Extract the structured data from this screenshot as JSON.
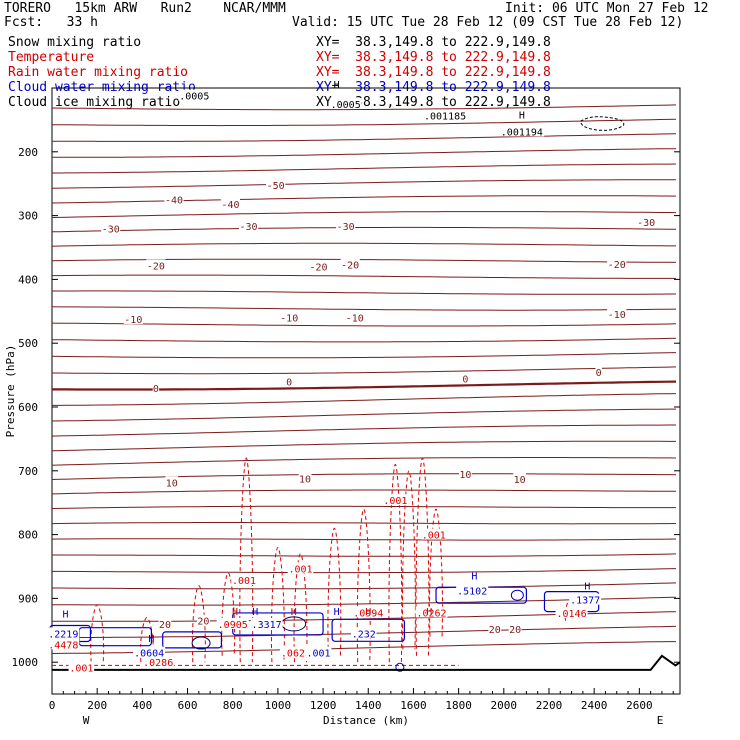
{
  "header": {
    "model": "TORERO",
    "resolution": "15km ARW",
    "run": "Run2",
    "org": "NCAR/MMM",
    "init": "Init: 06 UTC Mon 27 Feb 12",
    "fcst_label": "Fcst:",
    "fcst_value": "33 h",
    "valid": "Valid: 15 UTC Tue 28 Feb 12 (09 CST Tue 28 Feb 12)"
  },
  "fields": [
    {
      "name": "Snow mixing ratio",
      "xy": "XY=  38.3,149.8 to 222.9,149.8",
      "color": "#000000"
    },
    {
      "name": "Temperature",
      "xy": "XY=  38.3,149.8 to 222.9,149.8",
      "color": "#cc0000"
    },
    {
      "name": "Rain water mixing ratio",
      "xy": "XY=  38.3,149.8 to 222.9,149.8",
      "color": "#cc0000"
    },
    {
      "name": "Cloud water mixing ratio",
      "xy": "XY=  38.3,149.8 to 222.9,149.8",
      "color": "#0000cc"
    },
    {
      "name": "Cloud ice mixing ratio",
      "xy": "XY=  38.3,149.8 to 222.9,149.8",
      "color": "#000000"
    }
  ],
  "chart_data": {
    "type": "contour-cross-section",
    "xlabel": "Distance (km)",
    "ylabel": "Pressure (hPa)",
    "xlim": [
      0,
      2780
    ],
    "ylim": [
      1050,
      100
    ],
    "x_ticks": [
      0,
      200,
      400,
      600,
      800,
      1000,
      1200,
      1400,
      1600,
      1800,
      2000,
      2200,
      2400,
      2600
    ],
    "y_ticks": [
      200,
      300,
      400,
      500,
      600,
      700,
      800,
      900,
      1000
    ],
    "x_end_labels": {
      "left": "W",
      "right": "E"
    },
    "temperature_labels": [
      {
        "text": "-50",
        "x": 990,
        "p": 252
      },
      {
        "text": "-40",
        "x": 540,
        "p": 275
      },
      {
        "text": "-40",
        "x": 790,
        "p": 282
      },
      {
        "text": "-30",
        "x": 260,
        "p": 320
      },
      {
        "text": "-30",
        "x": 870,
        "p": 316
      },
      {
        "text": "-30",
        "x": 1300,
        "p": 316
      },
      {
        "text": "-30",
        "x": 2630,
        "p": 310
      },
      {
        "text": "-20",
        "x": 460,
        "p": 378
      },
      {
        "text": "-20",
        "x": 1180,
        "p": 380
      },
      {
        "text": "-20",
        "x": 1320,
        "p": 377
      },
      {
        "text": "-20",
        "x": 2500,
        "p": 376
      },
      {
        "text": "-10",
        "x": 360,
        "p": 462
      },
      {
        "text": "-10",
        "x": 1050,
        "p": 460
      },
      {
        "text": "-10",
        "x": 1340,
        "p": 460
      },
      {
        "text": "-10",
        "x": 2500,
        "p": 454
      },
      {
        "text": "0",
        "x": 460,
        "p": 570
      },
      {
        "text": "0",
        "x": 1050,
        "p": 560
      },
      {
        "text": "0",
        "x": 1830,
        "p": 555
      },
      {
        "text": "0",
        "x": 2420,
        "p": 545
      },
      {
        "text": "10",
        "x": 530,
        "p": 718
      },
      {
        "text": "10",
        "x": 1120,
        "p": 712
      },
      {
        "text": "10",
        "x": 1830,
        "p": 705
      },
      {
        "text": "10",
        "x": 2070,
        "p": 713
      },
      {
        "text": "20",
        "x": 500,
        "p": 940
      },
      {
        "text": "20",
        "x": 670,
        "p": 935
      },
      {
        "text": "20",
        "x": 1960,
        "p": 948
      },
      {
        "text": "20",
        "x": 2050,
        "p": 948
      }
    ],
    "rain_labels": [
      {
        "text": ".001",
        "x": 1520,
        "p": 746
      },
      {
        "text": ".001",
        "x": 1690,
        "p": 800
      },
      {
        "text": ".001",
        "x": 850,
        "p": 871
      },
      {
        "text": ".001",
        "x": 1100,
        "p": 853
      },
      {
        "text": ".001",
        "x": 130,
        "p": 1008
      },
      {
        "text": ".4478",
        "x": 50,
        "p": 972
      },
      {
        "text": ".0905",
        "x": 800,
        "p": 940
      },
      {
        "text": ".0623",
        "x": 1080,
        "p": 985
      },
      {
        "text": ".0994",
        "x": 1400,
        "p": 922
      },
      {
        "text": ".0286",
        "x": 470,
        "p": 1000
      },
      {
        "text": ".0146",
        "x": 2300,
        "p": 923
      },
      {
        "text": ".0262",
        "x": 1680,
        "p": 922
      }
    ],
    "cloud_water_labels": [
      {
        "text": ".2219",
        "x": 50,
        "p": 955
      },
      {
        "text": ".0604",
        "x": 430,
        "p": 985
      },
      {
        "text": ".5102",
        "x": 1860,
        "p": 888
      },
      {
        "text": ".1377",
        "x": 2360,
        "p": 902
      },
      {
        "text": ".232",
        "x": 1380,
        "p": 955
      },
      {
        "text": ".3317",
        "x": 950,
        "p": 940
      },
      {
        "text": ".001",
        "x": 1180,
        "p": 985
      }
    ],
    "snow_labels": [
      {
        "text": ".0005",
        "x": 630,
        "p": 112
      },
      {
        "text": ".0005",
        "x": 1300,
        "p": 125
      },
      {
        "text": ".001185",
        "x": 1740,
        "p": 143
      },
      {
        "text": ".001194",
        "x": 2080,
        "p": 168
      }
    ],
    "h_markers": [
      {
        "x": 60,
        "p": 930,
        "color": "#0000cc"
      },
      {
        "x": 440,
        "p": 968,
        "color": "#0000cc"
      },
      {
        "x": 810,
        "p": 926,
        "color": "#cc0000"
      },
      {
        "x": 900,
        "p": 926,
        "color": "#0000cc"
      },
      {
        "x": 1070,
        "p": 926,
        "color": "#cc0000"
      },
      {
        "x": 1260,
        "p": 926,
        "color": "#0000cc"
      },
      {
        "x": 1400,
        "p": 926,
        "color": "#cc0000"
      },
      {
        "x": 1670,
        "p": 926,
        "color": "#cc0000"
      },
      {
        "x": 1870,
        "p": 870,
        "color": "#0000cc"
      },
      {
        "x": 2370,
        "p": 886,
        "color": "#0000cc"
      },
      {
        "x": 1260,
        "p": 100,
        "color": "#000000"
      },
      {
        "x": 2080,
        "p": 148,
        "color": "#000000"
      }
    ]
  }
}
